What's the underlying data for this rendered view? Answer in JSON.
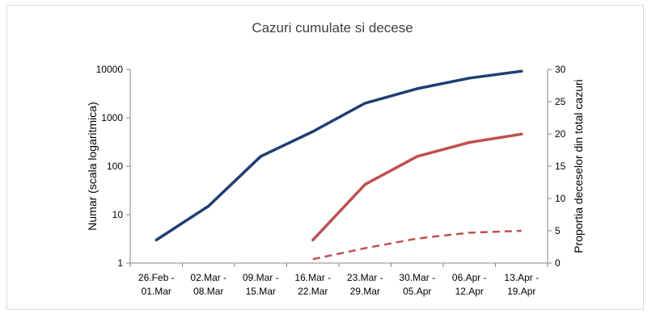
{
  "chart_data": {
    "type": "line",
    "title": "Cazuri cumulate si decese",
    "categories": [
      [
        "26.Feb -",
        "01.Mar"
      ],
      [
        "02.Mar -",
        "08.Mar"
      ],
      [
        "09.Mar -",
        "15.Mar"
      ],
      [
        "16.Mar -",
        "22.Mar"
      ],
      [
        "23.Mar -",
        "29.Mar"
      ],
      [
        "30.Mar -",
        "05.Apr"
      ],
      [
        "06.Apr -",
        "12.Apr"
      ],
      [
        "13.Apr -",
        "19.Apr"
      ]
    ],
    "y_left": {
      "label": "Numar (scala logaritmica)",
      "scale": "log",
      "ylim": [
        1,
        10000
      ],
      "ticks": [
        "1",
        "10",
        "100",
        "1000",
        "10000"
      ]
    },
    "y_right": {
      "label": "Proportia deceselor din total cazuri",
      "scale": "linear",
      "ylim": [
        0,
        30
      ],
      "ticks": [
        "0",
        "5",
        "10",
        "15",
        "20",
        "25",
        "30"
      ]
    },
    "series": [
      {
        "axis": "left",
        "color": "#1f3e73",
        "dash": "solid",
        "values": [
          3,
          15,
          160,
          520,
          2000,
          4000,
          6600,
          9200
        ]
      },
      {
        "axis": "left",
        "color": "#c0504d",
        "dash": "solid",
        "values": [
          null,
          null,
          null,
          3,
          42,
          160,
          310,
          460
        ]
      },
      {
        "axis": "right",
        "color": "#c0504d",
        "dash": "dashed",
        "values": [
          null,
          null,
          null,
          0.6,
          2.3,
          3.8,
          4.7,
          5.0
        ]
      }
    ],
    "grid": false,
    "legend": "none"
  }
}
